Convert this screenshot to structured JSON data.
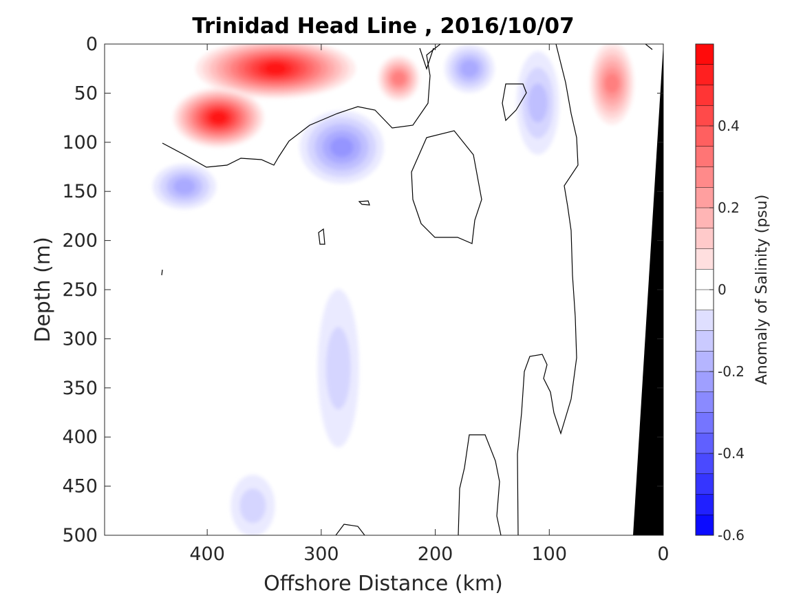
{
  "chart_data": {
    "type": "heatmap",
    "title": "Trinidad Head Line , 2016/10/07",
    "xlabel": "Offshore Distance (km)",
    "ylabel": "Depth (m)",
    "xlim": [
      490,
      0
    ],
    "ylim": [
      0,
      500
    ],
    "x_ticks": [
      "400",
      "300",
      "200",
      "100",
      "0"
    ],
    "y_ticks": [
      "0",
      "50",
      "100",
      "150",
      "200",
      "250",
      "300",
      "350",
      "400",
      "450",
      "500"
    ],
    "colorbar": {
      "label": "Anomaly of Salinity (psu)",
      "range": [
        -0.6,
        0.6
      ],
      "step": 0.05,
      "ticks": [
        "0.4",
        "0.2",
        "0",
        "-0.2",
        "-0.4",
        "-0.6"
      ],
      "colors": {
        "negative": "#0000ff",
        "zero": "#ffffff",
        "positive": "#ff0000"
      }
    },
    "anomaly_features": [
      {
        "sign": "positive",
        "center_km": 340,
        "center_depth_m": 25,
        "peak_psu": 0.55
      },
      {
        "sign": "positive",
        "center_km": 390,
        "center_depth_m": 75,
        "peak_psu": 0.55
      },
      {
        "sign": "positive",
        "center_km": 232,
        "center_depth_m": 35,
        "peak_psu": 0.3
      },
      {
        "sign": "positive",
        "center_km": 45,
        "center_depth_m": 40,
        "peak_psu": 0.3
      },
      {
        "sign": "negative",
        "center_km": 282,
        "center_depth_m": 105,
        "peak_psu": -0.25
      },
      {
        "sign": "negative",
        "center_km": 420,
        "center_depth_m": 145,
        "peak_psu": -0.2
      },
      {
        "sign": "negative",
        "center_km": 170,
        "center_depth_m": 25,
        "peak_psu": -0.2
      },
      {
        "sign": "negative",
        "center_km": 110,
        "center_depth_m": 60,
        "peak_psu": -0.15
      },
      {
        "sign": "negative",
        "center_km": 285,
        "center_depth_m": 330,
        "peak_psu": -0.08
      },
      {
        "sign": "negative",
        "center_km": 360,
        "center_depth_m": 470,
        "peak_psu": -0.08
      }
    ],
    "bathymetry_color": "#000000",
    "contour_level": 0
  }
}
